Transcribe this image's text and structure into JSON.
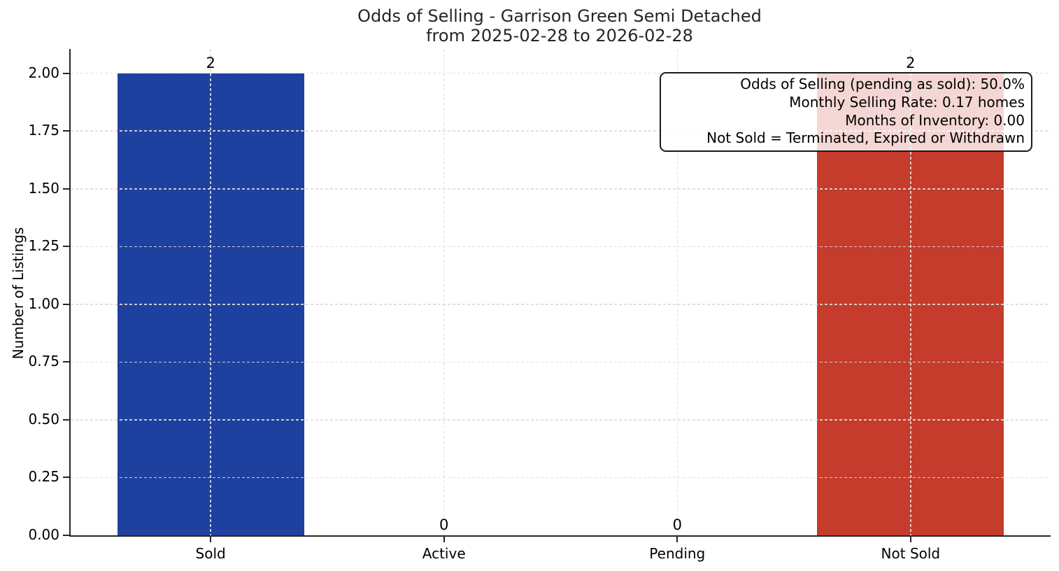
{
  "chart_data": {
    "type": "bar",
    "title": "Odds of Selling - Garrison Green Semi Detached",
    "subtitle": "from 2025-02-28 to 2026-02-28",
    "categories": [
      "Sold",
      "Active",
      "Pending",
      "Not Sold"
    ],
    "values": [
      2,
      0,
      0,
      2
    ],
    "bar_value_labels": [
      "2",
      "0",
      "0",
      "2"
    ],
    "bar_colors": [
      "#1e409e",
      null,
      null,
      "#c53b2c"
    ],
    "bar_width": 0.8,
    "xlabel": "",
    "ylabel": "Number of Listings",
    "ylim": [
      0,
      2.105
    ],
    "yticks": [
      "0.00",
      "0.25",
      "0.50",
      "0.75",
      "1.00",
      "1.25",
      "1.50",
      "1.75",
      "2.00"
    ],
    "legend": "none",
    "grid": {
      "visible": true,
      "axes": "both",
      "style": "dashed",
      "color": "#dcdcdc"
    },
    "spine_color": "#262626",
    "annotation": {
      "lines": [
        "Odds of Selling (pending as sold): 50.0%",
        "Monthly Selling Rate: 0.17 homes",
        "Months of Inventory: 0.00",
        "Not Sold = Terminated, Expired or Withdrawn"
      ]
    }
  }
}
